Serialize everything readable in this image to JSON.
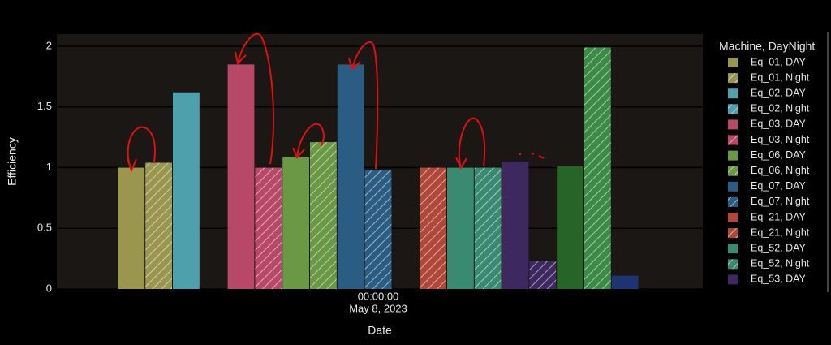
{
  "chart_data": {
    "type": "bar",
    "x_title": "Date",
    "y_title": "Efficiency",
    "x_tick_label": {
      "time": "00:00:00",
      "date": "May 8, 2023"
    },
    "legend_title": "Machine, DayNight",
    "ylim": [
      0,
      2.1
    ],
    "yticks": [
      0,
      0.5,
      1,
      1.5,
      2
    ],
    "grid": true,
    "series": [
      {
        "name": "Eq_01, DAY",
        "color": "#9a9650",
        "hatch": false,
        "values": [
          1.0
        ]
      },
      {
        "name": "Eq_01, Night",
        "color": "#9a9650",
        "hatch": true,
        "values": [
          1.04
        ]
      },
      {
        "name": "Eq_02, DAY",
        "color": "#4fa0ad",
        "hatch": false,
        "values": [
          1.62
        ]
      },
      {
        "name": "Eq_02, Night",
        "color": "#4fa0ad",
        "hatch": true,
        "values": [
          null
        ]
      },
      {
        "name": "Eq_03, DAY",
        "color": "#b84868",
        "hatch": false,
        "values": [
          1.85
        ]
      },
      {
        "name": "Eq_03, Night",
        "color": "#b84868",
        "hatch": true,
        "values": [
          1.0
        ]
      },
      {
        "name": "Eq_06, DAY",
        "color": "#6a9845",
        "hatch": false,
        "values": [
          1.09
        ]
      },
      {
        "name": "Eq_06, Night",
        "color": "#6a9845",
        "hatch": true,
        "values": [
          1.21
        ]
      },
      {
        "name": "Eq_07, DAY",
        "color": "#2b5d84",
        "hatch": false,
        "values": [
          1.85
        ]
      },
      {
        "name": "Eq_07, Night",
        "color": "#2b5d84",
        "hatch": true,
        "values": [
          0.98
        ]
      },
      {
        "name": "Eq_21, DAY",
        "color": "#b0483a",
        "hatch": false,
        "values": [
          null
        ]
      },
      {
        "name": "Eq_21, Night",
        "color": "#b0483a",
        "hatch": true,
        "values": [
          1.0
        ]
      },
      {
        "name": "Eq_52, DAY",
        "color": "#3a8a72",
        "hatch": false,
        "values": [
          1.0
        ]
      },
      {
        "name": "Eq_52, Night",
        "color": "#3a8a72",
        "hatch": true,
        "values": [
          1.0
        ]
      },
      {
        "name": "Eq_53, DAY",
        "color": "#3d2860",
        "hatch": false,
        "values": [
          1.05
        ]
      },
      {
        "name": null,
        "color": "#3d2860",
        "hatch": true,
        "values": [
          0.23
        ]
      },
      {
        "name": null,
        "color": "#266428",
        "hatch": false,
        "values": [
          1.01
        ]
      },
      {
        "name": null,
        "color": "#3c8a48",
        "hatch": true,
        "values": [
          1.99
        ]
      },
      {
        "name": null,
        "color": "#1e3470",
        "hatch": false,
        "values": [
          0.11
        ]
      }
    ]
  }
}
